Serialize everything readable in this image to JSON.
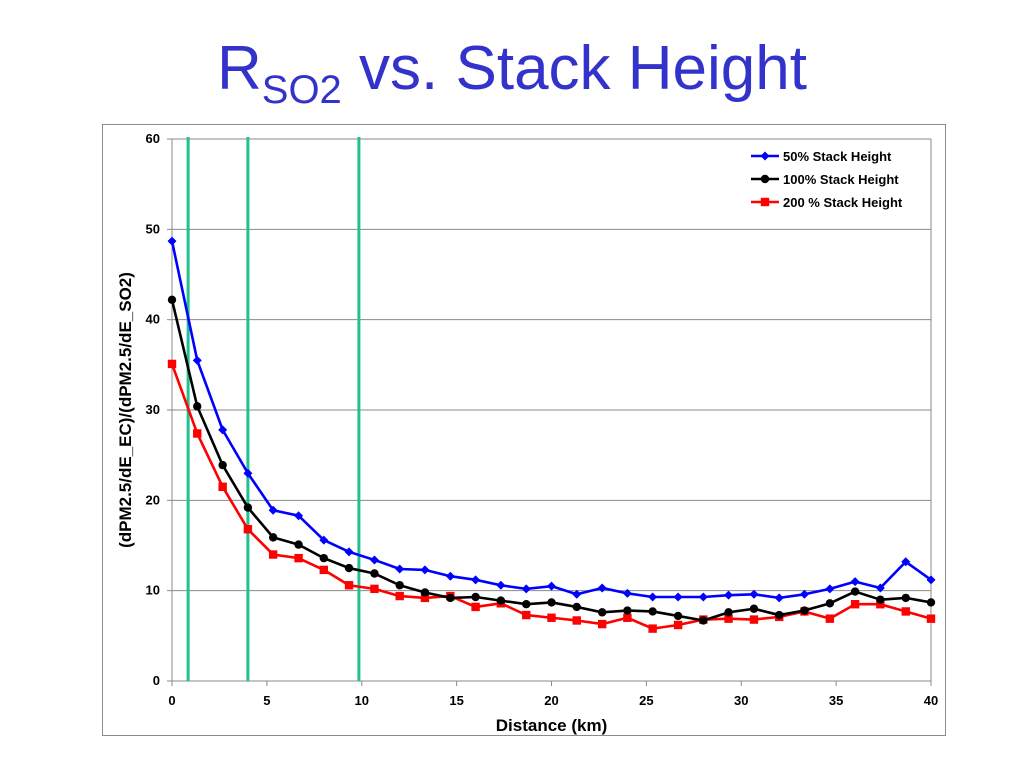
{
  "slide": {
    "title_main": "R",
    "title_sub": "SO2",
    "title_rest": " vs. Stack Height"
  },
  "chart_data": {
    "type": "line",
    "title": "",
    "xlabel": "Distance (km)",
    "ylabel": "(dPM2.5/dE_EC)/(dPM2.5/dE_SO2)",
    "xlim": [
      0,
      40
    ],
    "ylim": [
      0,
      60
    ],
    "xticks": [
      0,
      5,
      10,
      15,
      20,
      25,
      30,
      35,
      40
    ],
    "yticks": [
      0,
      10,
      20,
      30,
      40,
      50,
      60
    ],
    "grid": "horizontal",
    "legend_position": "top-right",
    "vertical_reference_lines": [
      {
        "x": 0.85,
        "color": "#20c090"
      },
      {
        "x": 4.0,
        "color": "#20c090"
      },
      {
        "x": 9.85,
        "color": "#20c090"
      }
    ],
    "x": [
      0,
      1.33,
      2.67,
      4.0,
      5.33,
      6.67,
      8.0,
      9.33,
      10.67,
      12.0,
      13.33,
      14.67,
      16.0,
      17.33,
      18.67,
      20.0,
      21.33,
      22.67,
      24.0,
      25.33,
      26.67,
      28.0,
      29.33,
      30.67,
      32.0,
      33.33,
      34.67,
      36.0,
      37.33,
      38.67,
      40.0
    ],
    "series": [
      {
        "name": "50% Stack Height",
        "color": "#0000ff",
        "marker": "diamond",
        "values": [
          48.7,
          35.5,
          27.8,
          23.0,
          18.9,
          18.3,
          15.6,
          14.3,
          13.4,
          12.4,
          12.3,
          11.6,
          11.2,
          10.6,
          10.2,
          10.5,
          9.6,
          10.3,
          9.7,
          9.3,
          9.3,
          9.3,
          9.5,
          9.6,
          9.2,
          9.6,
          10.2,
          11.0,
          10.3,
          13.2,
          11.2
        ]
      },
      {
        "name": "100% Stack Height",
        "color": "#000000",
        "marker": "circle",
        "values": [
          42.2,
          30.4,
          23.9,
          19.2,
          15.9,
          15.1,
          13.6,
          12.5,
          11.9,
          10.6,
          9.8,
          9.2,
          9.3,
          8.9,
          8.5,
          8.7,
          8.2,
          7.6,
          7.8,
          7.7,
          7.2,
          6.7,
          7.6,
          8.0,
          7.3,
          7.8,
          8.6,
          9.9,
          9.0,
          9.2,
          8.7
        ]
      },
      {
        "name": "200 % Stack Height",
        "color": "#ff0000",
        "marker": "square",
        "values": [
          35.1,
          27.4,
          21.5,
          16.8,
          14.0,
          13.6,
          12.3,
          10.6,
          10.2,
          9.4,
          9.2,
          9.4,
          8.2,
          8.6,
          7.3,
          7.0,
          6.7,
          6.3,
          7.0,
          5.8,
          6.2,
          6.8,
          6.9,
          6.8,
          7.1,
          7.7,
          6.9,
          8.5,
          8.5,
          7.7,
          6.9
        ]
      }
    ]
  }
}
